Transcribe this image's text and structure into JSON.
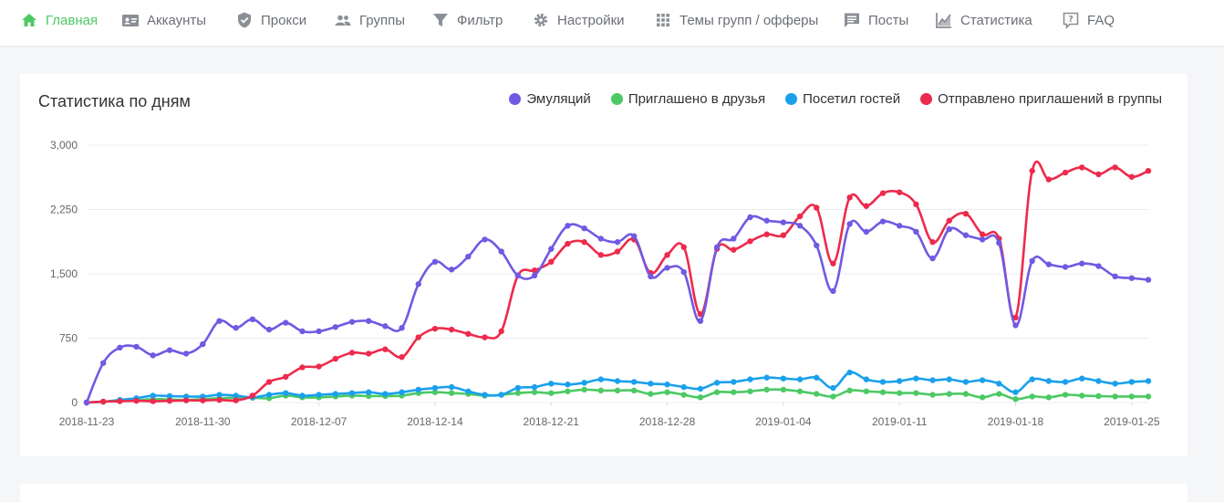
{
  "nav": {
    "items": [
      {
        "id": "home",
        "label": "Главная",
        "icon": "home-icon",
        "active": true
      },
      {
        "id": "accounts",
        "label": "Аккаунты",
        "icon": "id-card-icon"
      },
      {
        "id": "proxy",
        "label": "Прокси",
        "icon": "shield-icon"
      },
      {
        "id": "groups",
        "label": "Группы",
        "icon": "users-icon"
      },
      {
        "id": "filter",
        "label": "Фильтр",
        "icon": "filter-icon"
      },
      {
        "id": "settings",
        "label": "Настройки",
        "icon": "gear-icon"
      },
      {
        "id": "themes",
        "label": "Темы групп / офферы",
        "icon": "grid-icon"
      },
      {
        "id": "posts",
        "label": "Посты",
        "icon": "message-icon"
      },
      {
        "id": "stats",
        "label": "Статистика",
        "icon": "chart-icon"
      },
      {
        "id": "faq",
        "label": "FAQ",
        "icon": "help-icon"
      }
    ],
    "active_color": "#4cc964",
    "color": "#6b6f75"
  },
  "card": {
    "title": "Статистика по дням"
  },
  "chart_data": {
    "type": "line",
    "title": "Статистика по дням",
    "xlabel": "",
    "ylabel": "",
    "ylim": [
      0,
      3000
    ],
    "yticks": [
      "0",
      "750",
      "1,500",
      "2,250",
      "3,000"
    ],
    "xticks": [
      "2018-11-23",
      "2018-11-30",
      "2018-12-07",
      "2018-12-14",
      "2018-12-21",
      "2018-12-28",
      "2019-01-04",
      "2019-01-11",
      "2019-01-18",
      "2019-01-25"
    ],
    "start_date": "2018-11-23",
    "grid": "horizontal",
    "legend_position": "top-right",
    "series": [
      {
        "name": "Эмуляций",
        "color": "#7159e3",
        "values": [
          0,
          460,
          640,
          650,
          550,
          610,
          570,
          680,
          950,
          870,
          970,
          850,
          930,
          830,
          830,
          880,
          940,
          950,
          890,
          870,
          1380,
          1640,
          1550,
          1700,
          1900,
          1760,
          1480,
          1480,
          1790,
          2060,
          2030,
          1910,
          1870,
          1940,
          1470,
          1570,
          1520,
          950,
          1810,
          1910,
          2160,
          2120,
          2100,
          2060,
          1830,
          1300,
          2080,
          1990,
          2110,
          2060,
          1990,
          1680,
          2020,
          1950,
          1900,
          1860,
          900,
          1650,
          1610,
          1580,
          1620,
          1590,
          1470,
          1450,
          1430
        ]
      },
      {
        "name": "Приглашено в друзья",
        "color": "#4cc964",
        "values": [
          0,
          10,
          20,
          25,
          40,
          35,
          30,
          40,
          50,
          55,
          55,
          50,
          80,
          60,
          60,
          70,
          80,
          75,
          75,
          80,
          110,
          120,
          110,
          100,
          80,
          90,
          110,
          120,
          110,
          130,
          150,
          140,
          140,
          140,
          100,
          120,
          90,
          60,
          120,
          120,
          130,
          150,
          150,
          130,
          100,
          70,
          140,
          130,
          120,
          110,
          110,
          90,
          100,
          100,
          60,
          100,
          40,
          70,
          60,
          90,
          80,
          75,
          70,
          70,
          70
        ]
      },
      {
        "name": "Посетил гостей",
        "color": "#1aa0ed",
        "values": [
          0,
          10,
          30,
          50,
          80,
          75,
          70,
          70,
          90,
          80,
          60,
          90,
          110,
          80,
          90,
          100,
          110,
          120,
          100,
          120,
          150,
          170,
          180,
          130,
          90,
          90,
          170,
          180,
          220,
          210,
          230,
          270,
          250,
          240,
          220,
          210,
          180,
          160,
          230,
          240,
          270,
          290,
          280,
          270,
          290,
          170,
          350,
          270,
          240,
          250,
          280,
          260,
          270,
          240,
          260,
          220,
          120,
          270,
          250,
          240,
          280,
          250,
          220,
          240,
          250
        ]
      },
      {
        "name": "Отправлено приглашений в группы",
        "color": "#ee2a4c",
        "values": [
          0,
          10,
          15,
          20,
          15,
          20,
          25,
          25,
          30,
          25,
          80,
          240,
          300,
          410,
          420,
          510,
          580,
          570,
          620,
          530,
          760,
          860,
          850,
          800,
          760,
          830,
          1480,
          1540,
          1640,
          1850,
          1870,
          1720,
          1760,
          1900,
          1510,
          1720,
          1810,
          1030,
          1790,
          1780,
          1880,
          1960,
          1950,
          2170,
          2270,
          1620,
          2390,
          2290,
          2440,
          2450,
          2310,
          1870,
          2120,
          2200,
          1960,
          1910,
          990,
          2700,
          2600,
          2680,
          2740,
          2660,
          2740,
          2630,
          2700
        ]
      }
    ]
  }
}
